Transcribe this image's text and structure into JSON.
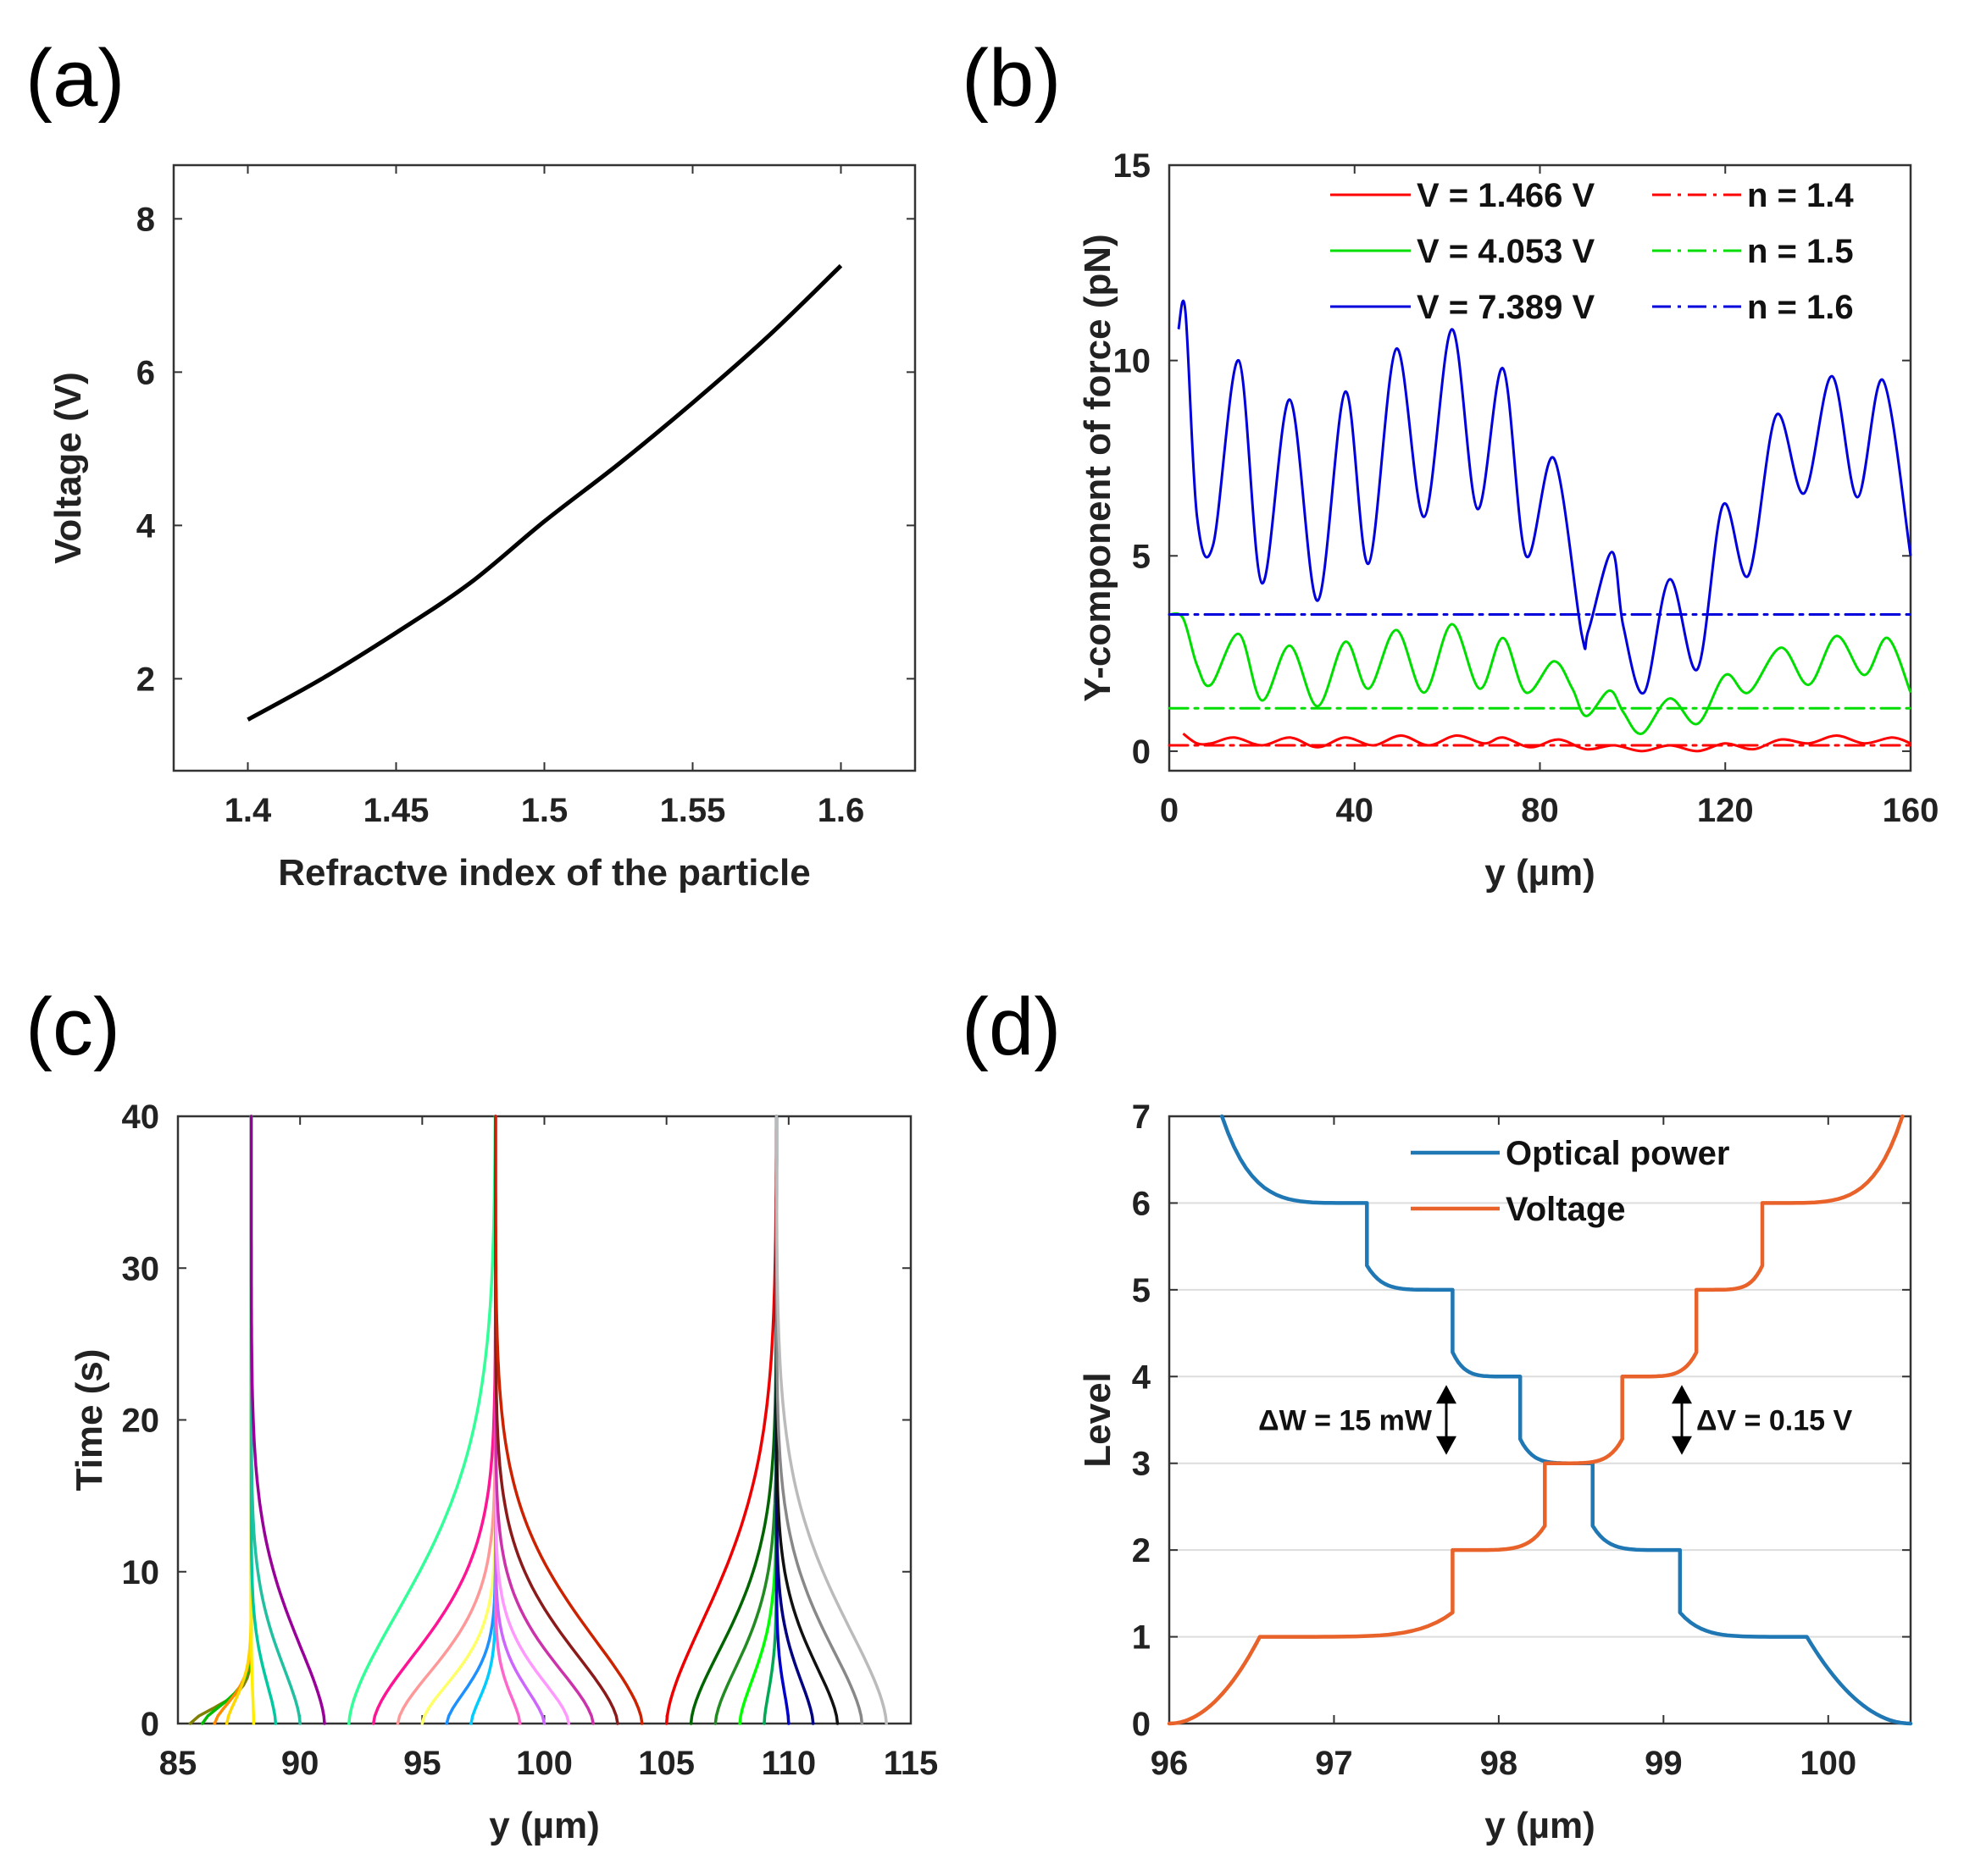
{
  "chart_data": [
    {
      "id": "a",
      "panel_label": "(a)",
      "type": "line",
      "xlabel": "Refractve index of the particle",
      "ylabel": "Voltage (V)",
      "xlim": [
        1.375,
        1.625
      ],
      "ylim": [
        0.8,
        8.7
      ],
      "xticks": [
        1.4,
        1.45,
        1.5,
        1.55,
        1.6
      ],
      "xtick_labels": [
        "1.4",
        "1.45",
        "1.5",
        "1.55",
        "1.6"
      ],
      "yticks": [
        2,
        4,
        6,
        8
      ],
      "ytick_labels": [
        "2",
        "4",
        "6",
        "8"
      ],
      "grid": false,
      "series": [
        {
          "name": "Voltage",
          "color": "#000000",
          "x": [
            1.4,
            1.425,
            1.45,
            1.475,
            1.5,
            1.525,
            1.55,
            1.575,
            1.6
          ],
          "y": [
            1.466,
            2.0,
            2.6,
            3.25,
            4.053,
            4.8,
            5.6,
            6.45,
            7.389
          ]
        }
      ]
    },
    {
      "id": "b",
      "panel_label": "(b)",
      "type": "line",
      "xlabel": "y (µm)",
      "ylabel": "Y-component of force (pN)",
      "xlim": [
        0,
        160
      ],
      "ylim": [
        -0.5,
        15
      ],
      "xticks": [
        0,
        40,
        80,
        120,
        160
      ],
      "xtick_labels": [
        "0",
        "40",
        "80",
        "120",
        "160"
      ],
      "yticks": [
        0,
        5,
        10,
        15
      ],
      "ytick_labels": [
        "0",
        "5",
        "10",
        "15"
      ],
      "grid": false,
      "legend_position": "top-right",
      "series": [
        {
          "name": "V = 1.466 V",
          "color": "#ff0000",
          "style": "solid",
          "x": [
            3,
            6,
            9,
            14,
            20,
            26,
            32,
            38,
            44,
            50,
            56,
            62,
            68,
            72,
            78,
            84,
            90,
            96,
            102,
            108,
            114,
            120,
            126,
            132,
            138,
            144,
            150,
            156,
            160
          ],
          "y": [
            0.45,
            0.2,
            0.2,
            0.35,
            0.15,
            0.35,
            0.1,
            0.35,
            0.15,
            0.4,
            0.15,
            0.4,
            0.2,
            0.35,
            0.1,
            0.3,
            0.05,
            0.15,
            0.0,
            0.15,
            0.0,
            0.2,
            0.05,
            0.3,
            0.2,
            0.4,
            0.2,
            0.35,
            0.2
          ]
        },
        {
          "name": "V = 4.053 V",
          "color": "#00dd00",
          "style": "solid",
          "x": [
            0,
            3,
            6,
            9,
            15,
            20,
            26,
            32,
            38,
            43,
            49,
            55,
            61,
            67,
            72,
            77,
            83,
            87,
            90,
            95,
            98,
            102,
            108,
            114,
            120,
            125,
            132,
            138,
            144,
            150,
            155,
            160
          ],
          "y": [
            3.5,
            3.4,
            2.2,
            1.7,
            3.0,
            1.3,
            2.7,
            1.15,
            2.8,
            1.6,
            3.1,
            1.5,
            3.25,
            1.6,
            2.9,
            1.5,
            2.3,
            1.6,
            0.9,
            1.55,
            1.0,
            0.45,
            1.35,
            0.7,
            1.95,
            1.5,
            2.65,
            1.7,
            2.95,
            1.95,
            2.9,
            1.5
          ]
        },
        {
          "name": "V = 7.389 V",
          "color": "#0000dd",
          "style": "solid",
          "x": [
            2,
            3.5,
            6,
            9.5,
            15,
            20,
            26,
            32,
            38,
            43,
            49,
            55,
            61,
            66.5,
            72,
            77,
            83,
            89,
            90.5,
            95.5,
            98,
            102.5,
            108,
            114,
            119.5,
            125,
            131,
            137,
            143,
            148.5,
            154,
            160
          ],
          "y": [
            10.8,
            11.25,
            6.0,
            5.3,
            10.0,
            4.3,
            9.0,
            3.85,
            9.2,
            4.8,
            10.3,
            6.0,
            10.8,
            6.2,
            9.8,
            5.0,
            7.5,
            3.0,
            3.1,
            5.1,
            3.2,
            1.5,
            4.4,
            2.1,
            6.3,
            4.5,
            8.6,
            6.6,
            9.6,
            6.5,
            9.5,
            5.0
          ]
        },
        {
          "name": "n = 1.4",
          "color": "#ff0000",
          "style": "dashdot",
          "x": [
            0,
            160
          ],
          "y": [
            0.15,
            0.15
          ]
        },
        {
          "name": "n = 1.5",
          "color": "#00dd00",
          "style": "dashdot",
          "x": [
            0,
            160
          ],
          "y": [
            1.1,
            1.1
          ]
        },
        {
          "name": "n = 1.6",
          "color": "#0000dd",
          "style": "dashdot",
          "x": [
            0,
            160
          ],
          "y": [
            3.5,
            3.5
          ]
        }
      ]
    },
    {
      "id": "c",
      "panel_label": "(c)",
      "type": "line",
      "xlabel": "y (µm)",
      "ylabel": "Time (s)",
      "xlim": [
        85,
        115
      ],
      "ylim": [
        0,
        40
      ],
      "xticks": [
        85,
        90,
        95,
        100,
        105,
        110,
        115
      ],
      "xtick_labels": [
        "85",
        "90",
        "95",
        "100",
        "105",
        "110",
        "115"
      ],
      "yticks": [
        0,
        10,
        20,
        30,
        40
      ],
      "ytick_labels": [
        "0",
        "10",
        "20",
        "30",
        "40"
      ],
      "grid": false,
      "trap_positions": [
        88,
        98,
        109.5
      ],
      "trajectories": [
        {
          "start": 85.5,
          "trap": 88,
          "tau": 1.6,
          "color": "#808000"
        },
        {
          "start": 86,
          "trap": 88,
          "tau": 1.9,
          "color": "#00bb00"
        },
        {
          "start": 86.5,
          "trap": 88,
          "tau": 2.2,
          "color": "#ff8c00"
        },
        {
          "start": 87,
          "trap": 88,
          "tau": 2.6,
          "color": "#ffd700"
        },
        {
          "start": 88.1,
          "trap": 88,
          "tau": 3.0,
          "color": "#ffee00"
        },
        {
          "start": 89,
          "trap": 88,
          "tau": 4.5,
          "color": "#00c8a0"
        },
        {
          "start": 90,
          "trap": 88,
          "tau": 6.5,
          "color": "#20c0a0"
        },
        {
          "start": 91,
          "trap": 88,
          "tau": 9.0,
          "color": "#990099"
        },
        {
          "start": 92,
          "trap": 98,
          "tau": 13.0,
          "color": "#33ff99"
        },
        {
          "start": 93,
          "trap": 98,
          "tau": 8.0,
          "color": "#ff1493"
        },
        {
          "start": 94,
          "trap": 98,
          "tau": 6.0,
          "color": "#ff9999"
        },
        {
          "start": 95,
          "trap": 98,
          "tau": 4.5,
          "color": "#ffff66"
        },
        {
          "start": 96,
          "trap": 98,
          "tau": 3.5,
          "color": "#1e90ff"
        },
        {
          "start": 97,
          "trap": 98,
          "tau": 2.8,
          "color": "#00ccff"
        },
        {
          "start": 99,
          "trap": 98,
          "tau": 3.0,
          "color": "#ff66cc"
        },
        {
          "start": 100,
          "trap": 98,
          "tau": 3.8,
          "color": "#cc66ff"
        },
        {
          "start": 101,
          "trap": 98,
          "tau": 4.8,
          "color": "#ff99ff"
        },
        {
          "start": 102,
          "trap": 98,
          "tau": 6.2,
          "color": "#cc33aa"
        },
        {
          "start": 103,
          "trap": 98,
          "tau": 8.0,
          "color": "#8b1a1a"
        },
        {
          "start": 104,
          "trap": 98,
          "tau": 10.0,
          "color": "#cc2200"
        },
        {
          "start": 105,
          "trap": 109.5,
          "tau": 12.0,
          "color": "#ee0000"
        },
        {
          "start": 106,
          "trap": 109.5,
          "tau": 8.5,
          "color": "#006400"
        },
        {
          "start": 107,
          "trap": 109.5,
          "tau": 6.5,
          "color": "#228b22"
        },
        {
          "start": 108,
          "trap": 109.5,
          "tau": 5.0,
          "color": "#00ff00"
        },
        {
          "start": 109,
          "trap": 109.5,
          "tau": 3.5,
          "color": "#00aa55"
        },
        {
          "start": 110,
          "trap": 109.5,
          "tau": 3.5,
          "color": "#0000cd"
        },
        {
          "start": 111,
          "trap": 109.5,
          "tau": 5.0,
          "color": "#000080"
        },
        {
          "start": 112,
          "trap": 109.5,
          "tau": 6.5,
          "color": "#111111"
        },
        {
          "start": 113,
          "trap": 109.5,
          "tau": 8.5,
          "color": "#888888"
        },
        {
          "start": 114,
          "trap": 109.5,
          "tau": 11.0,
          "color": "#bbbbbb"
        }
      ]
    },
    {
      "id": "d",
      "panel_label": "(d)",
      "type": "line",
      "xlabel": "y (µm)",
      "ylabel": "Level",
      "xlim": [
        96,
        100.5
      ],
      "ylim": [
        0,
        7
      ],
      "xticks": [
        96,
        97,
        98,
        99,
        100
      ],
      "xtick_labels": [
        "96",
        "97",
        "98",
        "99",
        "100"
      ],
      "yticks": [
        0,
        1,
        2,
        3,
        4,
        5,
        6,
        7
      ],
      "ytick_labels": [
        "0",
        "1",
        "2",
        "3",
        "4",
        "5",
        "6",
        "7"
      ],
      "grid": true,
      "legend_position": "top-center",
      "series": [
        {
          "name": "Optical power",
          "color": "#1f77b4",
          "steps": [
            {
              "level": 6,
              "x_start": 96.32,
              "x_end": 97.2
            },
            {
              "level": 5,
              "x_start": 97.2,
              "x_end": 97.72
            },
            {
              "level": 4,
              "x_start": 97.72,
              "x_end": 98.13
            },
            {
              "level": 3,
              "x_start": 98.13,
              "x_end": 98.57
            },
            {
              "level": 2,
              "x_start": 98.57,
              "x_end": 99.1
            },
            {
              "level": 1,
              "x_start": 99.1,
              "x_end": 99.87
            },
            {
              "level": 0,
              "x_start": 99.87,
              "x_end": 100.5
            }
          ]
        },
        {
          "name": "Voltage",
          "color": "#e8622a",
          "steps": [
            {
              "level": 0,
              "x_start": 96.0,
              "x_end": 96.55
            },
            {
              "level": 1,
              "x_start": 96.55,
              "x_end": 97.72
            },
            {
              "level": 2,
              "x_start": 97.72,
              "x_end": 98.28
            },
            {
              "level": 3,
              "x_start": 98.28,
              "x_end": 98.75
            },
            {
              "level": 4,
              "x_start": 98.75,
              "x_end": 99.2
            },
            {
              "level": 5,
              "x_start": 99.2,
              "x_end": 99.6
            },
            {
              "level": 6,
              "x_start": 99.6,
              "x_end": 100.45
            }
          ]
        }
      ],
      "annotations": [
        {
          "text": "ΔW = 15 mW",
          "x": 97.3,
          "y_from": 3,
          "y_to": 4
        },
        {
          "text": "ΔV = 0.15 V",
          "x": 99.1,
          "y_from": 3,
          "y_to": 4
        }
      ]
    }
  ]
}
